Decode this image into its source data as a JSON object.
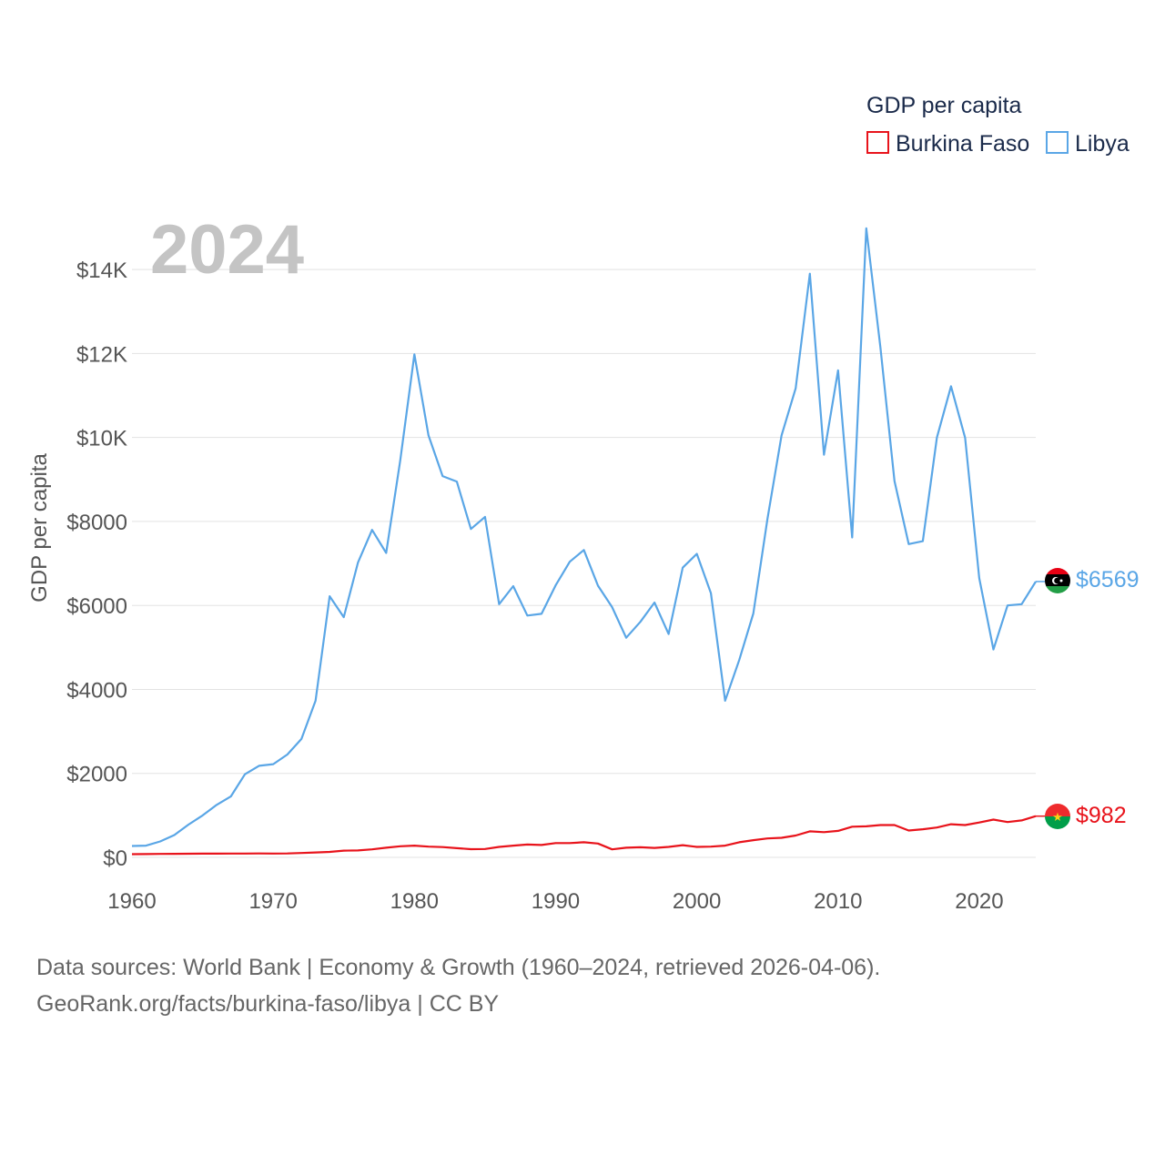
{
  "chart_data": {
    "type": "line",
    "year_display": "2024",
    "ylabel": "GDP per capita",
    "legend": {
      "title": "GDP per capita",
      "placement": "top-right"
    },
    "xlim": [
      1960,
      2024
    ],
    "ylim": [
      0,
      15000
    ],
    "x_ticks": [
      {
        "value": 1960,
        "label": "1960"
      },
      {
        "value": 1970,
        "label": "1970"
      },
      {
        "value": 1980,
        "label": "1980"
      },
      {
        "value": 1990,
        "label": "1990"
      },
      {
        "value": 2000,
        "label": "2000"
      },
      {
        "value": 2010,
        "label": "2010"
      },
      {
        "value": 2020,
        "label": "2020"
      }
    ],
    "y_ticks": [
      {
        "value": 0,
        "label": "$0"
      },
      {
        "value": 2000,
        "label": "$2000"
      },
      {
        "value": 4000,
        "label": "$4000"
      },
      {
        "value": 6000,
        "label": "$6000"
      },
      {
        "value": 8000,
        "label": "$8000"
      },
      {
        "value": 10000,
        "label": "$10K"
      },
      {
        "value": 12000,
        "label": "$12K"
      },
      {
        "value": 14000,
        "label": "$14K"
      }
    ],
    "x": [
      1960,
      1961,
      1962,
      1963,
      1964,
      1965,
      1966,
      1967,
      1968,
      1969,
      1970,
      1971,
      1972,
      1973,
      1974,
      1975,
      1976,
      1977,
      1978,
      1979,
      1980,
      1981,
      1982,
      1983,
      1984,
      1985,
      1986,
      1987,
      1988,
      1989,
      1990,
      1991,
      1992,
      1993,
      1994,
      1995,
      1996,
      1997,
      1998,
      1999,
      2000,
      2001,
      2002,
      2003,
      2004,
      2005,
      2006,
      2007,
      2008,
      2009,
      2010,
      2011,
      2012,
      2013,
      2014,
      2015,
      2016,
      2017,
      2018,
      2019,
      2020,
      2021,
      2022,
      2023,
      2024
    ],
    "series": [
      {
        "name": "Burkina Faso",
        "color": "#e8131b",
        "end_label": "$982",
        "values": [
          75,
          78,
          82,
          84,
          86,
          88,
          89,
          91,
          92,
          93,
          90,
          93,
          105,
          118,
          130,
          160,
          165,
          190,
          230,
          265,
          280,
          255,
          245,
          220,
          195,
          200,
          250,
          280,
          305,
          295,
          340,
          340,
          360,
          330,
          190,
          230,
          240,
          225,
          250,
          290,
          250,
          255,
          280,
          360,
          410,
          450,
          465,
          520,
          620,
          600,
          630,
          730,
          740,
          770,
          770,
          640,
          670,
          710,
          790,
          770,
          830,
          900,
          840,
          880,
          982
        ]
      },
      {
        "name": "Libya",
        "color": "#5aa6e6",
        "end_label": "$6569",
        "values": [
          270,
          280,
          380,
          530,
          780,
          1000,
          1250,
          1450,
          1980,
          2180,
          2220,
          2450,
          2820,
          3730,
          6220,
          5720,
          7020,
          7800,
          7250,
          9460,
          11980,
          10050,
          9080,
          8950,
          7820,
          8110,
          6030,
          6460,
          5760,
          5800,
          6480,
          7040,
          7320,
          6470,
          5960,
          5230,
          5610,
          6070,
          5320,
          6900,
          7230,
          6290,
          3730,
          4700,
          5810,
          8060,
          10050,
          11170,
          13900,
          9590,
          11600,
          7620,
          14980,
          12150,
          8960,
          7460,
          7530,
          10000,
          11220,
          9990,
          6650,
          4950,
          6000,
          6030,
          6569
        ]
      }
    ]
  },
  "footer": {
    "line1": "Data sources: World Bank | Economy & Growth (1960–2024, retrieved 2026-04-06).",
    "line2": "GeoRank.org/facts/burkina-faso/libya | CC BY"
  }
}
